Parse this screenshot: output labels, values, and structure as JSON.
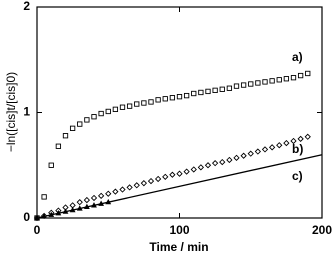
{
  "chart_data": {
    "type": "scatter",
    "x_label": "Time / min",
    "y_label": "−ln([cis]t/[cis]0)",
    "xlim": [
      0,
      200
    ],
    "ylim": [
      0,
      2
    ],
    "xticks": [
      0,
      100,
      200
    ],
    "yticks": [
      0,
      1,
      2
    ],
    "grid": false,
    "series": [
      {
        "name": "a)",
        "marker": "square",
        "color": "#000000",
        "x": [
          0,
          5,
          10,
          15,
          20,
          25,
          30,
          35,
          40,
          45,
          50,
          55,
          60,
          65,
          70,
          75,
          80,
          85,
          90,
          95,
          100,
          105,
          110,
          115,
          120,
          125,
          130,
          135,
          140,
          145,
          150,
          155,
          160,
          165,
          170,
          175,
          180,
          185,
          190
        ],
        "values": [
          0,
          0.2,
          0.5,
          0.68,
          0.78,
          0.85,
          0.89,
          0.93,
          0.96,
          0.99,
          1.01,
          1.03,
          1.05,
          1.06,
          1.08,
          1.09,
          1.1,
          1.12,
          1.13,
          1.14,
          1.15,
          1.16,
          1.18,
          1.19,
          1.2,
          1.21,
          1.22,
          1.23,
          1.25,
          1.26,
          1.27,
          1.28,
          1.29,
          1.3,
          1.31,
          1.32,
          1.33,
          1.35,
          1.37
        ]
      },
      {
        "name": "b)",
        "marker": "diamond",
        "color": "#000000",
        "x": [
          0,
          5,
          10,
          15,
          20,
          25,
          30,
          35,
          40,
          45,
          50,
          55,
          60,
          65,
          70,
          75,
          80,
          85,
          90,
          95,
          100,
          105,
          110,
          115,
          120,
          125,
          130,
          135,
          140,
          145,
          150,
          155,
          160,
          165,
          170,
          175,
          180,
          185,
          190
        ],
        "values": [
          0,
          0.02,
          0.05,
          0.07,
          0.1,
          0.12,
          0.15,
          0.17,
          0.19,
          0.21,
          0.23,
          0.25,
          0.27,
          0.29,
          0.31,
          0.33,
          0.35,
          0.37,
          0.39,
          0.41,
          0.42,
          0.44,
          0.46,
          0.48,
          0.5,
          0.52,
          0.53,
          0.55,
          0.57,
          0.59,
          0.61,
          0.63,
          0.65,
          0.67,
          0.69,
          0.71,
          0.73,
          0.75,
          0.77
        ]
      },
      {
        "name": "c)",
        "marker": "triangle",
        "color": "#000000",
        "x": [
          0,
          5,
          10,
          15,
          20,
          25,
          30,
          35,
          40,
          45,
          50
        ],
        "values": [
          0,
          0.015,
          0.03,
          0.045,
          0.06,
          0.075,
          0.09,
          0.105,
          0.12,
          0.135,
          0.15
        ]
      }
    ],
    "fit_line": {
      "x": [
        0,
        200
      ],
      "values": [
        0,
        0.6
      ],
      "color": "#000000"
    }
  }
}
